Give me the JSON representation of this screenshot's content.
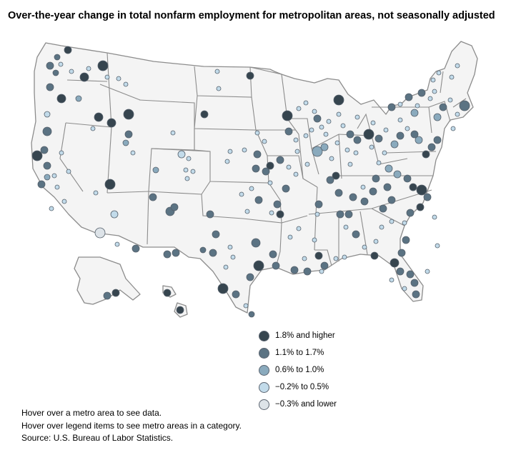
{
  "title": "Over-the-year change in total nonfarm employment for metropolitan areas, not seasonally adjusted",
  "legend": [
    {
      "label": "1.8% and higher",
      "color": "#36454f",
      "category": "cat1"
    },
    {
      "label": "1.1% to 1.7%",
      "color": "#5b7383",
      "category": "cat2"
    },
    {
      "label": "0.6% to 1.0%",
      "color": "#8aaabd",
      "category": "cat3"
    },
    {
      "label": "−0.2% to 0.5%",
      "color": "#c2dbea",
      "category": "cat4"
    },
    {
      "label": "−0.3% and lower",
      "color": "#dde3e8",
      "category": "cat5"
    }
  ],
  "notes": [
    "Hover over a metro area to see data.",
    "Hover over legend items to see metro areas in a category.",
    "Source: U.S. Bureau of Labor Statistics."
  ],
  "map": {
    "state_fill": "#f4f4f4",
    "state_border": "#8c8c8c"
  }
}
